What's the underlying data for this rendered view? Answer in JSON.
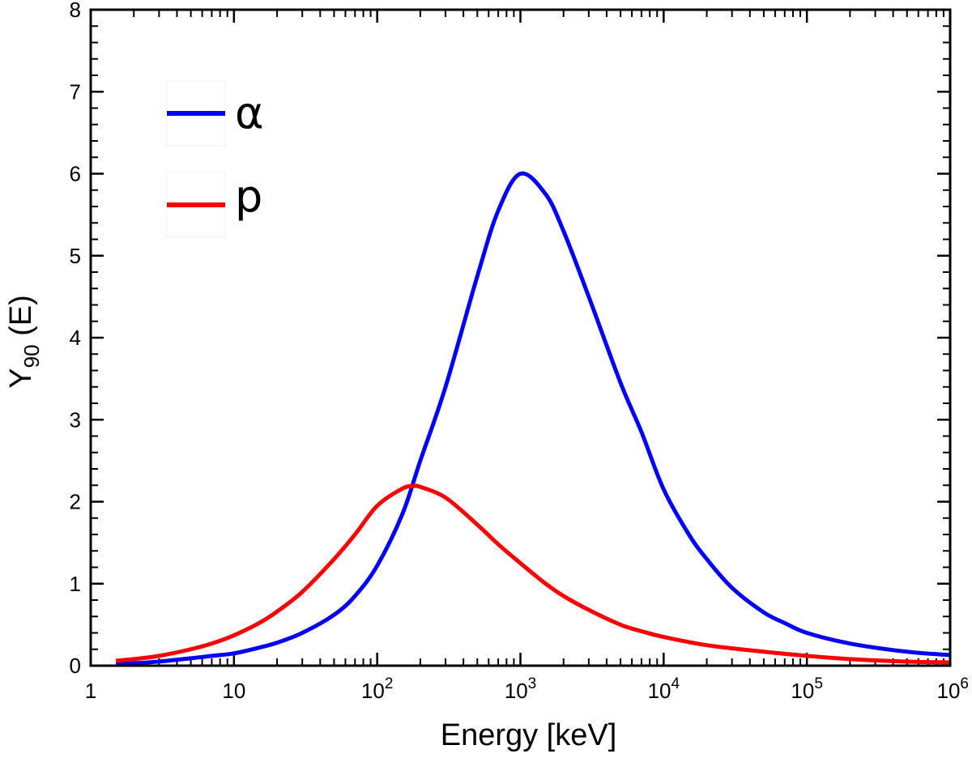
{
  "chart_data": {
    "type": "line",
    "title": "",
    "xlabel": "Energy [keV]",
    "ylabel": "Y₉₀ (E)",
    "ylabel_main": "Y",
    "ylabel_sub": "90",
    "ylabel_rest": " (E)",
    "xscale": "log",
    "xlim": [
      1,
      1000000
    ],
    "ylim": [
      0,
      8
    ],
    "grid": false,
    "legend_position": "top-left",
    "x_ticks": [
      {
        "label": "1"
      },
      {
        "label": "10"
      },
      {
        "base": "10",
        "exp": "2"
      },
      {
        "base": "10",
        "exp": "3"
      },
      {
        "base": "10",
        "exp": "4"
      },
      {
        "base": "10",
        "exp": "5"
      },
      {
        "base": "10",
        "exp": "6"
      }
    ],
    "y_ticks": [
      "0",
      "1",
      "2",
      "3",
      "4",
      "5",
      "6",
      "7",
      "8"
    ],
    "series": [
      {
        "name": "α",
        "color": "#0000ff",
        "x": [
          1.5,
          2,
          3,
          5,
          7,
          10,
          15,
          20,
          30,
          50,
          70,
          100,
          150,
          200,
          300,
          500,
          700,
          1000,
          1500,
          2000,
          3000,
          5000,
          7000,
          10000,
          15000,
          20000,
          30000,
          50000,
          70000,
          100000,
          200000,
          500000,
          1000000
        ],
        "y": [
          0.02,
          0.03,
          0.05,
          0.09,
          0.12,
          0.15,
          0.22,
          0.28,
          0.4,
          0.62,
          0.85,
          1.22,
          1.85,
          2.5,
          3.4,
          4.75,
          5.55,
          6.0,
          5.75,
          5.3,
          4.5,
          3.45,
          2.85,
          2.15,
          1.6,
          1.3,
          0.95,
          0.65,
          0.52,
          0.4,
          0.27,
          0.17,
          0.13
        ]
      },
      {
        "name": "p",
        "color": "#ff0000",
        "x": [
          1.5,
          2,
          3,
          5,
          7,
          10,
          15,
          20,
          30,
          50,
          70,
          100,
          150,
          180,
          200,
          300,
          500,
          700,
          1000,
          1500,
          2000,
          3000,
          5000,
          7000,
          10000,
          20000,
          50000,
          100000,
          200000,
          500000,
          1000000
        ],
        "y": [
          0.06,
          0.08,
          0.12,
          0.2,
          0.27,
          0.37,
          0.52,
          0.66,
          0.9,
          1.3,
          1.6,
          1.95,
          2.16,
          2.19,
          2.18,
          2.05,
          1.72,
          1.48,
          1.25,
          1.0,
          0.85,
          0.68,
          0.5,
          0.42,
          0.35,
          0.25,
          0.17,
          0.12,
          0.08,
          0.05,
          0.04
        ]
      }
    ]
  }
}
